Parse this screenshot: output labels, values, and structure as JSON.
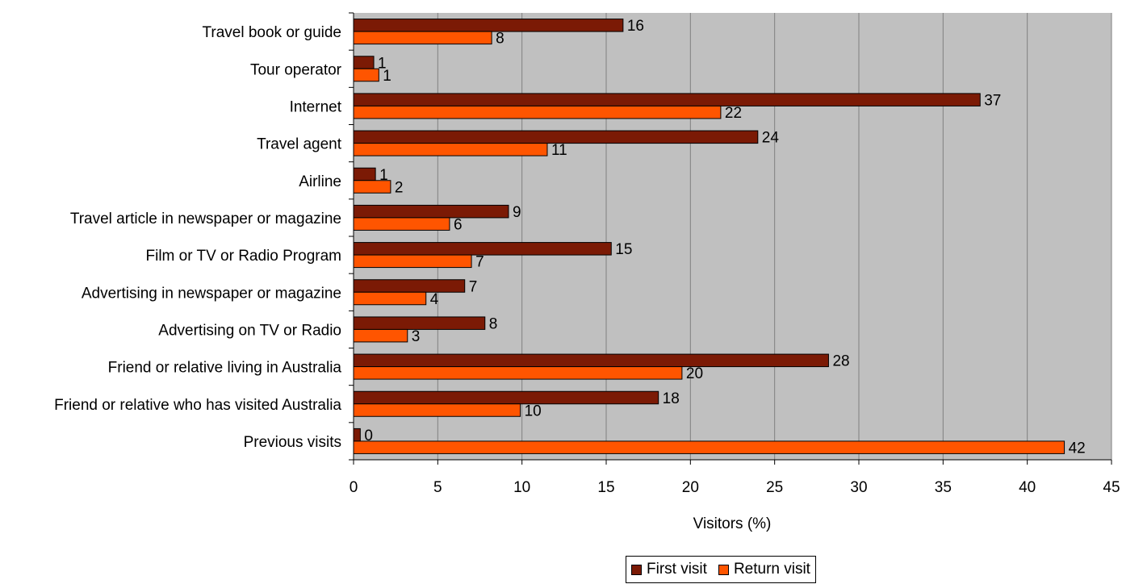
{
  "chart_data": {
    "type": "bar",
    "orientation": "horizontal",
    "categories": [
      "Travel book or guide",
      "Tour operator",
      "Internet",
      "Travel agent",
      "Airline",
      "Travel article in newspaper or magazine",
      "Film or TV or Radio Program",
      "Advertising in newspaper or magazine",
      "Advertising on TV or Radio",
      "Friend or relative living in Australia",
      "Friend or relative who has visited Australia",
      "Previous visits"
    ],
    "series": [
      {
        "name": "First visit",
        "color": "#7b1a05",
        "values": [
          16.0,
          1.2,
          37.2,
          24.0,
          1.3,
          9.2,
          15.3,
          6.6,
          7.8,
          28.2,
          18.1,
          0.4
        ],
        "labels": [
          "16",
          "1",
          "37",
          "24",
          "1",
          "9",
          "15",
          "7",
          "8",
          "28",
          "18",
          "0"
        ]
      },
      {
        "name": "Return visit",
        "color": "#ff5500",
        "values": [
          8.2,
          1.5,
          21.8,
          11.5,
          2.2,
          5.7,
          7.0,
          4.3,
          3.2,
          19.5,
          9.9,
          42.2
        ],
        "labels": [
          "8",
          "1",
          "22",
          "11",
          "2",
          "6",
          "7",
          "4",
          "3",
          "20",
          "10",
          "42"
        ]
      }
    ],
    "xlabel": "Visitors (%)",
    "xlim": [
      0,
      45
    ],
    "xticks": [
      0,
      5,
      10,
      15,
      20,
      25,
      30,
      35,
      40,
      45
    ],
    "grid": true,
    "plot_background": "#c0c0c0",
    "legend_position": "bottom"
  }
}
